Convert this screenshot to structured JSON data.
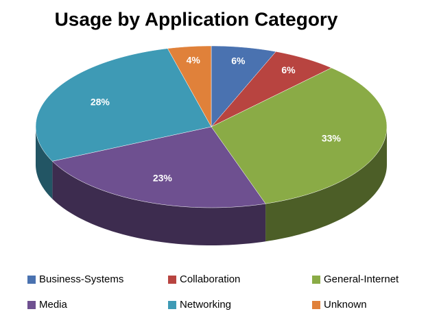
{
  "chart_data": {
    "type": "pie3d",
    "title": "Usage by Application Category",
    "categories": [
      "Business-Systems",
      "Collaboration",
      "General-Internet",
      "Media",
      "Networking",
      "Unknown"
    ],
    "values": [
      6,
      6,
      33,
      23,
      28,
      4
    ],
    "value_labels": [
      "6%",
      "6%",
      "33%",
      "23%",
      "28%",
      "4%"
    ],
    "colors": [
      "#4a72b0",
      "#b84440",
      "#8aab46",
      "#6e5090",
      "#3e9ab5",
      "#e0813a"
    ]
  }
}
